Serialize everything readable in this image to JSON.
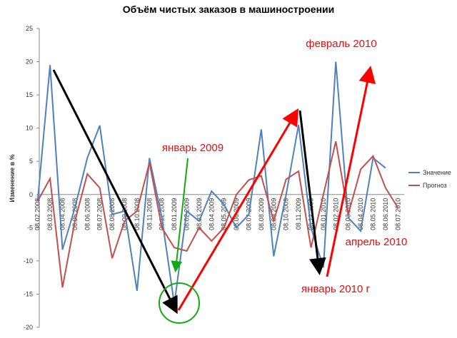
{
  "chart_data": {
    "type": "line",
    "title": "Объём чистых заказов в машиностроении",
    "y_label": "Изменение в %",
    "categories": [
      "08.02.2008",
      "08.03.2008",
      "08.04.2008",
      "08.05.2008",
      "08.06.2008",
      "08.07.2008",
      "08.08.2008",
      "08.09.2008",
      "08.10.2008",
      "08.11.2008",
      "08.12.2008",
      "08.01.2009",
      "08.02.2009",
      "08.03.2009",
      "08.04.2009",
      "08.05.2009",
      "08.06.2009",
      "08.07.2009",
      "08.08.2009",
      "08.09.2009",
      "08.10.2009",
      "08.11.2009",
      "08.12.2009",
      "08.01.2010",
      "08.02.2010",
      "08.03.2010",
      "08.04.2010",
      "08.05.2010",
      "08.06.2010",
      "08.07.2010"
    ],
    "series": [
      {
        "name": "Значение",
        "color": "#4f81bd",
        "values": [
          -1,
          19.5,
          -8.3,
          -2,
          5.5,
          10.4,
          -3,
          -2.5,
          -14.5,
          5.5,
          -3.5,
          -16.5,
          -2.5,
          -4,
          0.5,
          -1.5,
          -5,
          -3,
          9.8,
          -9.3,
          0,
          10.5,
          -5,
          -11,
          20,
          -3.5,
          -5.5,
          5.5,
          4,
          null
        ]
      },
      {
        "name": "Прогноз",
        "color": "#c0504d",
        "values": [
          -1,
          2.4,
          -14,
          -4,
          3.1,
          1,
          -9.6,
          -4,
          -2.5,
          4.8,
          -5,
          -8,
          -8.5,
          -5,
          -7,
          -5,
          0,
          2.2,
          2.8,
          -4,
          2.3,
          3.5,
          -8,
          0,
          8,
          -3,
          3.8,
          5.8,
          1,
          -2
        ]
      }
    ],
    "ylim": [
      -20,
      25
    ],
    "yticks": [
      -20,
      -15,
      -10,
      -5,
      0,
      5,
      10,
      15,
      20,
      25
    ],
    "annotations": [
      "январь 2009",
      "февраль 2010",
      "апрель 2010",
      "январь 2010 г"
    ],
    "legend": "right"
  }
}
